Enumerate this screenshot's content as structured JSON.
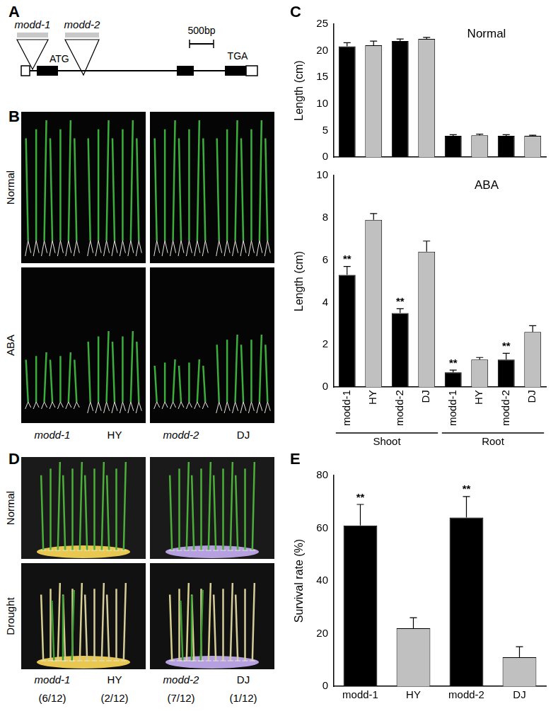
{
  "figure": {
    "panel_labels": [
      "A",
      "B",
      "C",
      "D",
      "E"
    ],
    "gene_diagram": {
      "alleles": [
        "modd-1",
        "modd-2"
      ],
      "start_codon": "ATG",
      "stop_codon": "TGA",
      "scale_bar": "500bp"
    },
    "photos_B": {
      "rows": [
        "Normal",
        "ABA"
      ],
      "columns": [
        "modd-1",
        "HY",
        "modd-2",
        "DJ"
      ]
    },
    "photos_D": {
      "rows": [
        "Normal",
        "Drought"
      ],
      "columns": [
        "modd-1",
        "HY",
        "modd-2",
        "DJ"
      ],
      "survivors": [
        "(6/12)",
        "(2/12)",
        "(7/12)",
        "(1/12)"
      ]
    }
  },
  "chart_data": [
    {
      "type": "bar",
      "annotation": "Normal",
      "y_label": "Length (cm)",
      "categories": [
        "modd-1",
        "HY",
        "modd-2",
        "DJ",
        "modd-1",
        "HY",
        "modd-2",
        "DJ"
      ],
      "values": [
        20.8,
        21.0,
        21.8,
        22.2,
        4.0,
        4.1,
        4.0,
        4.0
      ],
      "errors": [
        0.7,
        0.8,
        0.4,
        0.3,
        0.2,
        0.2,
        0.2,
        0.1
      ],
      "colors": [
        "#000000",
        "#c0c0c0",
        "#000000",
        "#c0c0c0",
        "#000000",
        "#c0c0c0",
        "#000000",
        "#c0c0c0"
      ],
      "ylim": [
        0,
        25
      ],
      "yticks": [
        0,
        5,
        10,
        15,
        20,
        25
      ],
      "grid": false,
      "tick_labels": "y"
    },
    {
      "type": "bar",
      "annotation": "ABA",
      "y_label": "Length (cm)",
      "categories": [
        "modd-1",
        "HY",
        "modd-2",
        "DJ",
        "modd-1",
        "HY",
        "modd-2",
        "DJ"
      ],
      "values": [
        5.3,
        7.9,
        3.5,
        6.4,
        0.7,
        1.3,
        1.3,
        2.6
      ],
      "errors": [
        0.4,
        0.3,
        0.2,
        0.5,
        0.1,
        0.1,
        0.3,
        0.3
      ],
      "significance": [
        "**",
        null,
        "**",
        null,
        "**",
        null,
        "**",
        null
      ],
      "groups": [
        {
          "label": "Shoot",
          "size": 4
        },
        {
          "label": "Root",
          "size": 4
        }
      ],
      "colors": [
        "#000000",
        "#c0c0c0",
        "#000000",
        "#c0c0c0",
        "#000000",
        "#c0c0c0",
        "#000000",
        "#c0c0c0"
      ],
      "ylim": [
        0,
        10
      ],
      "yticks": [
        0,
        2,
        4,
        6,
        8,
        10
      ],
      "grid": false
    },
    {
      "type": "bar",
      "y_label": "Survival rate (%)",
      "categories": [
        "modd-1",
        "HY",
        "modd-2",
        "DJ"
      ],
      "values": [
        61,
        22,
        64,
        11
      ],
      "errors": [
        8,
        4,
        8,
        4
      ],
      "significance": [
        "**",
        null,
        "**",
        null
      ],
      "colors": [
        "#000000",
        "#c0c0c0",
        "#000000",
        "#c0c0c0"
      ],
      "ylim": [
        0,
        80
      ],
      "yticks": [
        0,
        20,
        40,
        60,
        80
      ],
      "grid": false
    }
  ]
}
